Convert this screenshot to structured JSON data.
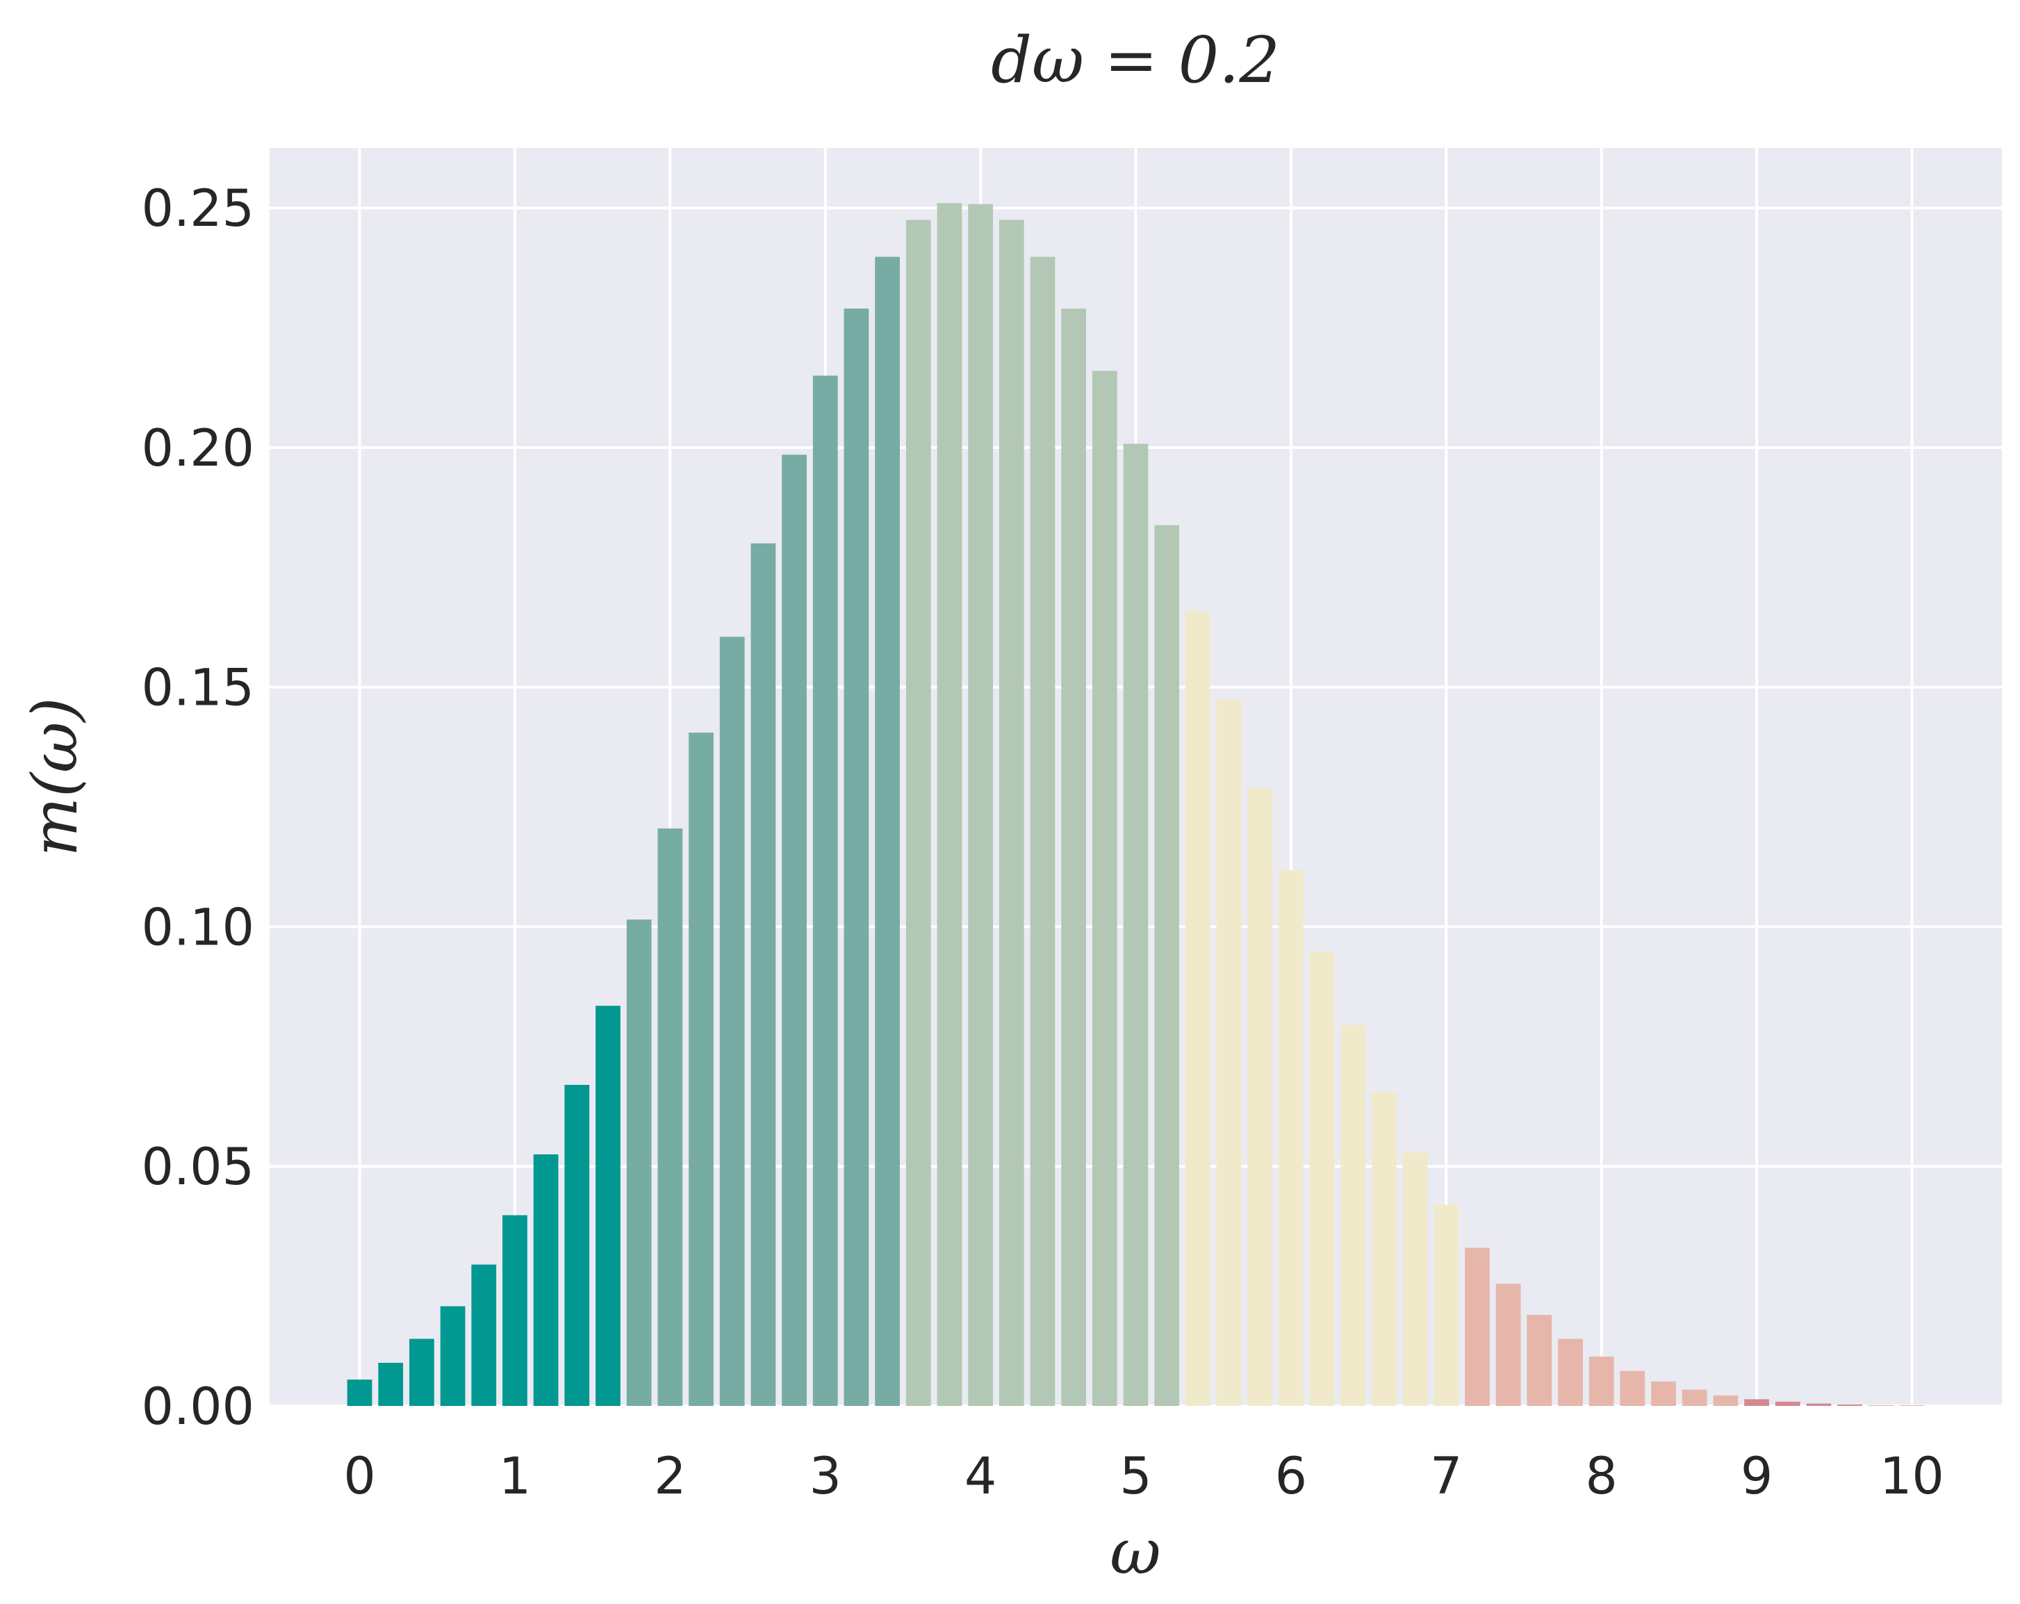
{
  "chart_data": {
    "type": "bar",
    "title": "dω = 0.2",
    "xlabel": "ω",
    "ylabel": "m(ω)",
    "xlim": [
      -0.58,
      10.58
    ],
    "ylim": [
      0,
      0.2625
    ],
    "x_ticks": [
      0,
      1,
      2,
      3,
      4,
      5,
      6,
      7,
      8,
      9,
      10
    ],
    "y_ticks": [
      0.0,
      0.05,
      0.1,
      0.15,
      0.2,
      0.25
    ],
    "y_tick_labels": [
      "0.00",
      "0.05",
      "0.10",
      "0.15",
      "0.20",
      "0.25"
    ],
    "grid": true,
    "background": "#eaeaf2",
    "grid_color": "#ffffff",
    "bar_width": 0.16,
    "colors": {
      "group1": "#009891",
      "group2": "#76aca3",
      "group3": "#b2c8b5",
      "group4": "#f0eacb",
      "group5": "#e6b6ab",
      "group6": "#d48a8f"
    },
    "x": [
      0.0,
      0.2,
      0.4,
      0.6,
      0.8,
      1.0,
      1.2,
      1.4,
      1.6,
      1.8,
      2.0,
      2.2,
      2.4,
      2.6,
      2.8,
      3.0,
      3.2,
      3.4,
      3.6,
      3.8,
      4.0,
      4.2,
      4.4,
      4.6,
      4.8,
      5.0,
      5.2,
      5.4,
      5.6,
      5.8,
      6.0,
      6.2,
      6.4,
      6.6,
      6.8,
      7.0,
      7.2,
      7.4,
      7.6,
      7.8,
      8.0,
      8.2,
      8.4,
      8.6,
      8.8,
      9.0,
      9.2,
      9.4,
      9.6,
      9.8,
      10.0
    ],
    "values": [
      0.0055,
      0.009,
      0.014,
      0.0208,
      0.0295,
      0.0398,
      0.0525,
      0.067,
      0.0835,
      0.1015,
      0.1205,
      0.1405,
      0.1605,
      0.18,
      0.1985,
      0.215,
      0.229,
      0.2398,
      0.2475,
      0.251,
      0.2508,
      0.2475,
      0.2398,
      0.229,
      0.216,
      0.2008,
      0.1838,
      0.1658,
      0.1475,
      0.129,
      0.1118,
      0.0948,
      0.0795,
      0.0655,
      0.053,
      0.042,
      0.033,
      0.0255,
      0.019,
      0.014,
      0.0103,
      0.0073,
      0.0051,
      0.0034,
      0.0022,
      0.0014,
      0.0009,
      0.0005,
      0.0003,
      0.0001,
      0.0001
    ],
    "color_group": [
      1,
      1,
      1,
      1,
      1,
      1,
      1,
      1,
      1,
      2,
      2,
      2,
      2,
      2,
      2,
      2,
      2,
      2,
      3,
      3,
      3,
      3,
      3,
      3,
      3,
      3,
      3,
      4,
      4,
      4,
      4,
      4,
      4,
      4,
      4,
      4,
      5,
      5,
      5,
      5,
      5,
      5,
      5,
      5,
      5,
      6,
      6,
      6,
      6,
      6,
      6
    ]
  }
}
